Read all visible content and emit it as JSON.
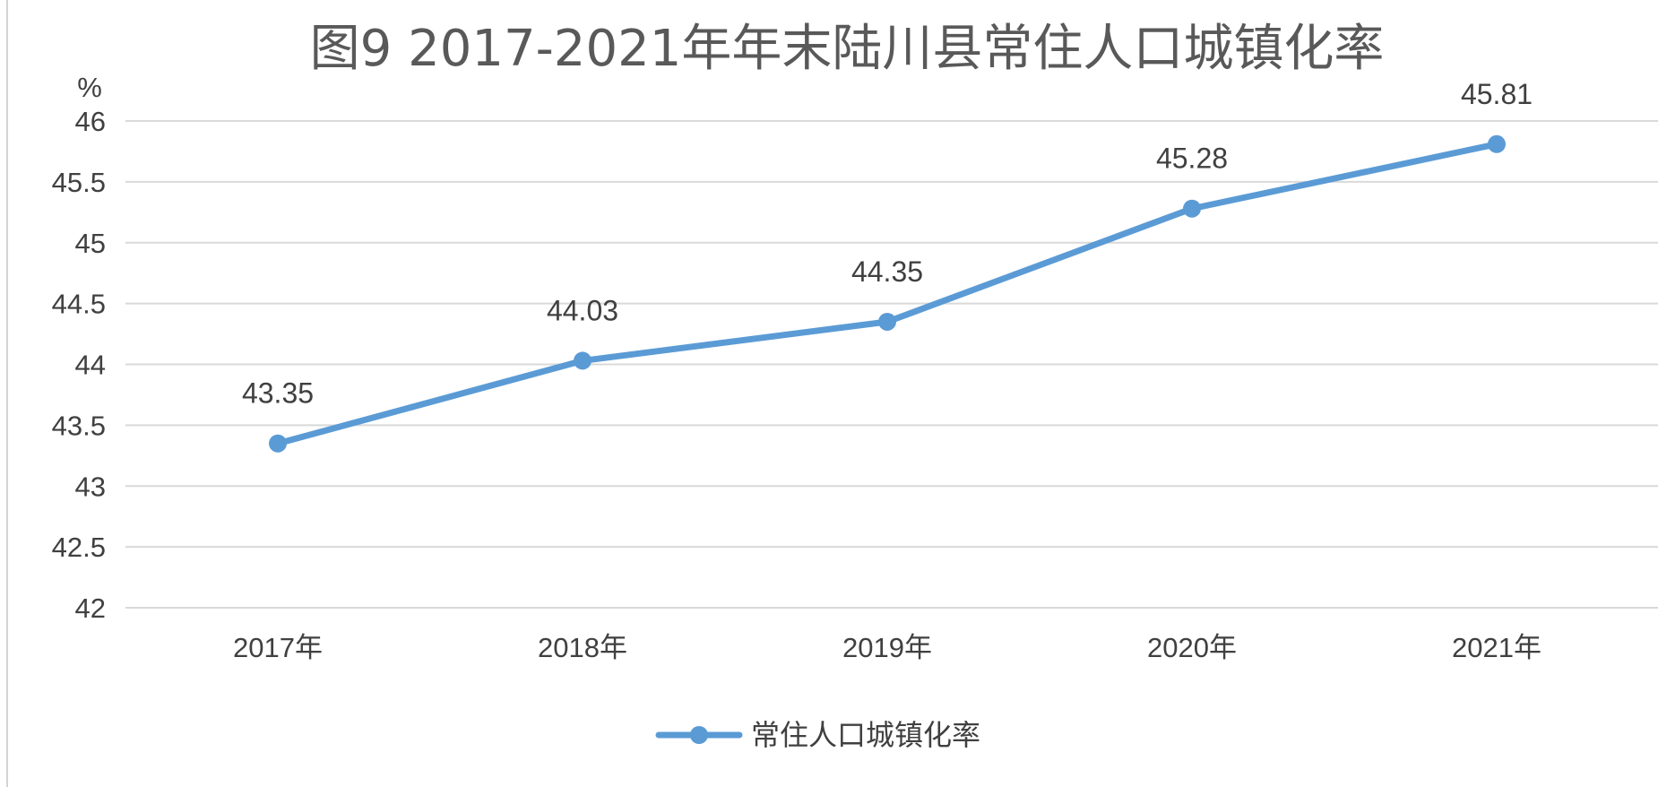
{
  "chart_data": {
    "type": "line",
    "title": "图9  2017-2021年年末陆川县常住人口城镇化率",
    "ylabel": "%",
    "categories": [
      "2017年",
      "2018年",
      "2019年",
      "2020年",
      "2021年"
    ],
    "series": [
      {
        "name": "常住人口城镇化率",
        "values": [
          43.35,
          44.03,
          44.35,
          45.28,
          45.81
        ],
        "color": "#5b9bd5"
      }
    ],
    "data_labels": [
      "43.35",
      "44.03",
      "44.35",
      "45.28",
      "45.81"
    ],
    "ylim": [
      42,
      46
    ],
    "yticks": [
      "42",
      "42.5",
      "43",
      "43.5",
      "44",
      "44.5",
      "45",
      "45.5",
      "46"
    ],
    "grid": true,
    "legend_position": "bottom"
  }
}
